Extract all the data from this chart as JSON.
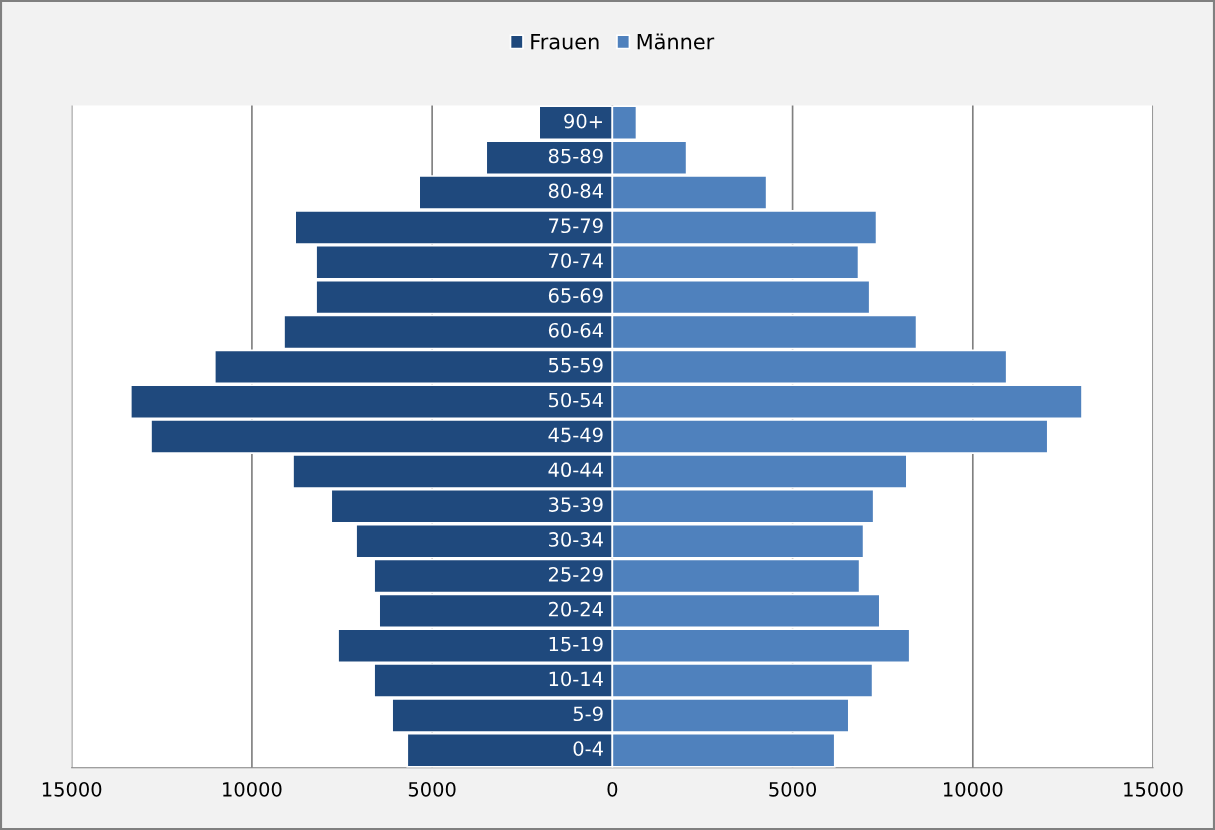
{
  "chart_data": {
    "type": "bar",
    "orientation": "horizontal",
    "categories": [
      "90+",
      "85-89",
      "80-84",
      "75-79",
      "70-74",
      "65-69",
      "60-64",
      "55-59",
      "50-54",
      "45-49",
      "40-44",
      "35-39",
      "30-34",
      "25-29",
      "20-24",
      "15-19",
      "10-14",
      "5-9",
      "0-4"
    ],
    "series": [
      {
        "name": "Frauen",
        "color": "#1f497d",
        "values": [
          -2030,
          -3500,
          -5360,
          -8800,
          -8220,
          -8220,
          -9110,
          -11030,
          -13360,
          -12800,
          -8860,
          -7800,
          -7110,
          -6610,
          -6470,
          -7610,
          -6610,
          -6110,
          -5690
        ]
      },
      {
        "name": "Männer",
        "color": "#4f81bd",
        "values": [
          670,
          2060,
          4280,
          7330,
          6830,
          7140,
          8440,
          10940,
          13030,
          12080,
          8170,
          7250,
          6970,
          6860,
          7420,
          8250,
          7220,
          6560,
          6170
        ]
      }
    ],
    "xlim": [
      -15000,
      15000
    ],
    "xticks": [
      {
        "value": -15000,
        "label": "15000"
      },
      {
        "value": -10000,
        "label": "10000"
      },
      {
        "value": -5000,
        "label": "5000"
      },
      0,
      5000,
      10000,
      15000
    ],
    "stacked": true,
    "grid": "x",
    "legend": "top",
    "tick_labels": "x"
  }
}
